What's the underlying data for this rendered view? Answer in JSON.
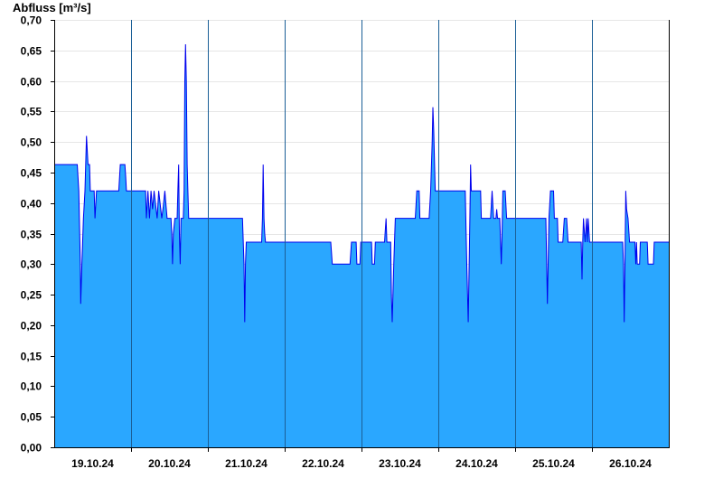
{
  "chart_data": {
    "type": "area",
    "ylabel": "Abfluss [m³/s]",
    "xlabel": "",
    "ylim": [
      0,
      0.7
    ],
    "y_ticks": [
      "0,00",
      "0,05",
      "0,10",
      "0,15",
      "0,20",
      "0,25",
      "0,30",
      "0,35",
      "0,40",
      "0,45",
      "0,50",
      "0,55",
      "0,60",
      "0,65",
      "0,70"
    ],
    "x_ticks": [
      "19.10.24",
      "20.10.24",
      "21.10.24",
      "22.10.24",
      "23.10.24",
      "24.10.24",
      "25.10.24",
      "26.10.24"
    ],
    "grid": true,
    "fill_color": "#2aa7ff",
    "line_color": "#0000ee",
    "x_start": "18.10.24",
    "points": [
      [
        0.0,
        0.463
      ],
      [
        0.3,
        0.463
      ],
      [
        0.32,
        0.42
      ],
      [
        0.34,
        0.3
      ],
      [
        0.345,
        0.235
      ],
      [
        0.36,
        0.3
      ],
      [
        0.38,
        0.375
      ],
      [
        0.4,
        0.42
      ],
      [
        0.41,
        0.463
      ],
      [
        0.42,
        0.51
      ],
      [
        0.44,
        0.463
      ],
      [
        0.46,
        0.463
      ],
      [
        0.47,
        0.42
      ],
      [
        0.52,
        0.42
      ],
      [
        0.53,
        0.375
      ],
      [
        0.55,
        0.42
      ],
      [
        0.84,
        0.42
      ],
      [
        0.85,
        0.443
      ],
      [
        0.86,
        0.463
      ],
      [
        0.92,
        0.463
      ],
      [
        0.93,
        0.443
      ],
      [
        0.94,
        0.42
      ],
      [
        1.19,
        0.42
      ],
      [
        1.2,
        0.375
      ],
      [
        1.22,
        0.42
      ],
      [
        1.24,
        0.375
      ],
      [
        1.26,
        0.42
      ],
      [
        1.28,
        0.39
      ],
      [
        1.3,
        0.42
      ],
      [
        1.34,
        0.375
      ],
      [
        1.36,
        0.42
      ],
      [
        1.4,
        0.375
      ],
      [
        1.42,
        0.395
      ],
      [
        1.44,
        0.42
      ],
      [
        1.47,
        0.375
      ],
      [
        1.5,
        0.375
      ],
      [
        1.52,
        0.375
      ],
      [
        1.53,
        0.35
      ],
      [
        1.54,
        0.3
      ],
      [
        1.55,
        0.35
      ],
      [
        1.57,
        0.375
      ],
      [
        1.6,
        0.375
      ],
      [
        1.61,
        0.42
      ],
      [
        1.62,
        0.463
      ],
      [
        1.63,
        0.35
      ],
      [
        1.64,
        0.3
      ],
      [
        1.65,
        0.375
      ],
      [
        1.68,
        0.375
      ],
      [
        1.69,
        0.42
      ],
      [
        1.7,
        0.6
      ],
      [
        1.71,
        0.66
      ],
      [
        1.72,
        0.6
      ],
      [
        1.73,
        0.463
      ],
      [
        1.74,
        0.42
      ],
      [
        1.75,
        0.375
      ],
      [
        2.45,
        0.375
      ],
      [
        2.47,
        0.3
      ],
      [
        2.48,
        0.205
      ],
      [
        2.49,
        0.3
      ],
      [
        2.5,
        0.336
      ],
      [
        2.7,
        0.336
      ],
      [
        2.71,
        0.375
      ],
      [
        2.72,
        0.463
      ],
      [
        2.73,
        0.375
      ],
      [
        2.74,
        0.35
      ],
      [
        2.75,
        0.336
      ],
      [
        3.6,
        0.336
      ],
      [
        3.62,
        0.3
      ],
      [
        3.85,
        0.3
      ],
      [
        3.87,
        0.336
      ],
      [
        3.93,
        0.336
      ],
      [
        3.94,
        0.3
      ],
      [
        3.98,
        0.3
      ],
      [
        3.99,
        0.336
      ],
      [
        4.05,
        0.336
      ],
      [
        4.08,
        0.336
      ],
      [
        4.1,
        0.336
      ],
      [
        4.13,
        0.336
      ],
      [
        4.14,
        0.3
      ],
      [
        4.17,
        0.3
      ],
      [
        4.18,
        0.336
      ],
      [
        4.3,
        0.336
      ],
      [
        4.31,
        0.355
      ],
      [
        4.32,
        0.375
      ],
      [
        4.33,
        0.336
      ],
      [
        4.38,
        0.336
      ],
      [
        4.39,
        0.25
      ],
      [
        4.4,
        0.205
      ],
      [
        4.42,
        0.3
      ],
      [
        4.44,
        0.375
      ],
      [
        4.7,
        0.375
      ],
      [
        4.72,
        0.42
      ],
      [
        4.75,
        0.42
      ],
      [
        4.76,
        0.375
      ],
      [
        4.88,
        0.375
      ],
      [
        4.9,
        0.42
      ],
      [
        4.92,
        0.5
      ],
      [
        4.93,
        0.557
      ],
      [
        4.94,
        0.52
      ],
      [
        4.96,
        0.42
      ],
      [
        5.35,
        0.42
      ],
      [
        5.37,
        0.3
      ],
      [
        5.39,
        0.205
      ],
      [
        5.41,
        0.375
      ],
      [
        5.42,
        0.463
      ],
      [
        5.43,
        0.42
      ],
      [
        5.55,
        0.42
      ],
      [
        5.56,
        0.375
      ],
      [
        5.68,
        0.375
      ],
      [
        5.7,
        0.42
      ],
      [
        5.72,
        0.375
      ],
      [
        5.75,
        0.375
      ],
      [
        5.76,
        0.39
      ],
      [
        5.77,
        0.375
      ],
      [
        5.8,
        0.375
      ],
      [
        5.82,
        0.3
      ],
      [
        5.83,
        0.35
      ],
      [
        5.84,
        0.42
      ],
      [
        5.87,
        0.42
      ],
      [
        5.89,
        0.375
      ],
      [
        6.4,
        0.375
      ],
      [
        6.41,
        0.3
      ],
      [
        6.42,
        0.235
      ],
      [
        6.43,
        0.3
      ],
      [
        6.44,
        0.375
      ],
      [
        6.46,
        0.42
      ],
      [
        6.5,
        0.42
      ],
      [
        6.51,
        0.375
      ],
      [
        6.55,
        0.375
      ],
      [
        6.56,
        0.336
      ],
      [
        6.62,
        0.336
      ],
      [
        6.64,
        0.375
      ],
      [
        6.67,
        0.375
      ],
      [
        6.69,
        0.336
      ],
      [
        6.86,
        0.336
      ],
      [
        6.87,
        0.275
      ],
      [
        6.88,
        0.336
      ],
      [
        6.89,
        0.375
      ],
      [
        6.91,
        0.336
      ],
      [
        6.92,
        0.355
      ],
      [
        6.93,
        0.375
      ],
      [
        6.94,
        0.336
      ],
      [
        6.95,
        0.375
      ],
      [
        6.97,
        0.336
      ],
      [
        7.4,
        0.336
      ],
      [
        7.41,
        0.3
      ],
      [
        7.42,
        0.205
      ],
      [
        7.43,
        0.3
      ],
      [
        7.44,
        0.42
      ],
      [
        7.45,
        0.39
      ],
      [
        7.47,
        0.375
      ],
      [
        7.49,
        0.336
      ],
      [
        7.56,
        0.336
      ],
      [
        7.57,
        0.3
      ],
      [
        7.58,
        0.336
      ],
      [
        7.59,
        0.3
      ],
      [
        7.62,
        0.3
      ],
      [
        7.63,
        0.336
      ],
      [
        7.72,
        0.336
      ],
      [
        7.73,
        0.3
      ],
      [
        7.8,
        0.3
      ],
      [
        7.81,
        0.336
      ],
      [
        8.0,
        0.336
      ]
    ]
  }
}
